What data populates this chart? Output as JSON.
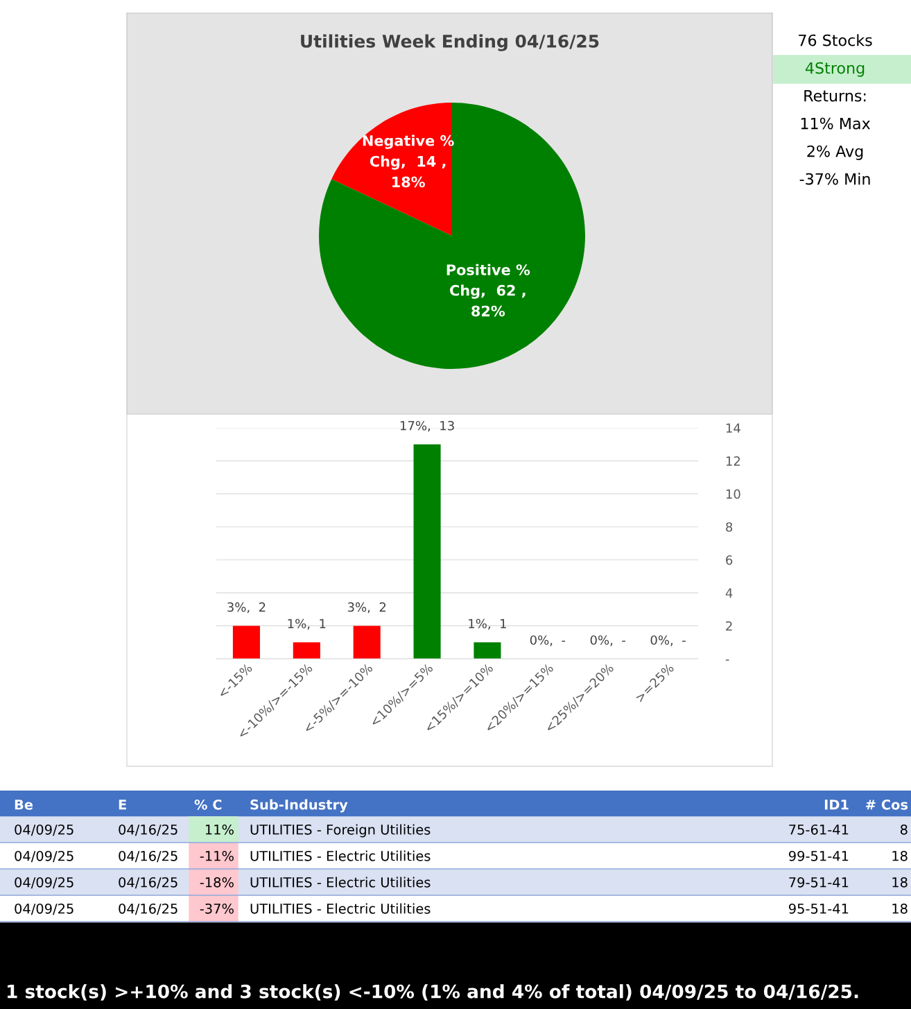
{
  "chart_data": [
    {
      "type": "pie",
      "title": "Utilities Week Ending 04/16/25",
      "categories": [
        null,
        null
      ],
      "values": [
        18,
        82
      ],
      "value_labels": [
        "Negative % Chg,  14 , 18%",
        "Positive % Chg,  62 , 82%"
      ],
      "colors": [
        "#ff0000",
        "#008000"
      ]
    },
    {
      "type": "bar",
      "categories": [
        "<-15%",
        "<-10%/>=-15%",
        "<-5%/>=-10%",
        "<10%/>=5%",
        "<15%/>=10%",
        "<20%/>=15%",
        "<25%/>=20%",
        ">=25%"
      ],
      "values": [
        2,
        1,
        2,
        13,
        1,
        0,
        0,
        0
      ],
      "value_labels": [
        "3%,  2",
        "1%,  1",
        "3%,  2",
        "17%,  13",
        "1%,  1",
        "0%,  -",
        "0%,  -",
        "0%,  -"
      ],
      "colors": [
        "#ff0000",
        "#ff0000",
        "#ff0000",
        "#008000",
        "#008000",
        "#008000",
        "#008000",
        "#008000"
      ],
      "ylim": [
        0,
        14
      ],
      "yticks": [
        {
          "value": 0,
          "label": "-"
        },
        2,
        4,
        6,
        8,
        10,
        12,
        14
      ],
      "grid": "y"
    },
    {
      "type": "other",
      "annotations": [
        "76 Stocks",
        "4Strong",
        "Returns:",
        "11% Max",
        "2% Avg",
        "-37% Min"
      ],
      "colors": [
        null,
        "#c6efce",
        null,
        null,
        null,
        null
      ]
    },
    {
      "type": "other",
      "categories": [
        "Be",
        "E",
        "% C",
        "Sub-Industry",
        "ID1",
        "# Cos"
      ],
      "cell_labels": [
        [
          "04/09/25",
          "04/16/25",
          "11%",
          "UTILITIES - Foreign Utilities",
          "75-61-41",
          "8"
        ],
        [
          "04/09/25",
          "04/16/25",
          "-11%",
          "UTILITIES - Electric Utilities",
          "99-51-41",
          "18"
        ],
        [
          "04/09/25",
          "04/16/25",
          "-18%",
          "UTILITIES - Electric Utilities",
          "79-51-41",
          "18"
        ],
        [
          "04/09/25",
          "04/16/25",
          "-37%",
          "UTILITIES - Electric Utilities",
          "95-51-41",
          "18"
        ]
      ],
      "colors": [
        [
          null,
          null,
          "#c6efce",
          null,
          null,
          null
        ],
        [
          null,
          null,
          "#ffc7ce",
          null,
          null,
          null
        ],
        [
          null,
          null,
          "#ffc7ce",
          null,
          null,
          null
        ],
        [
          null,
          null,
          "#ffc7ce",
          null,
          null,
          null
        ]
      ],
      "annotations": [
        "1 stock(s) >+10% and 3 stock(s) <-10% (1% and 4% of total) 04/09/25 to 04/16/25."
      ]
    }
  ]
}
